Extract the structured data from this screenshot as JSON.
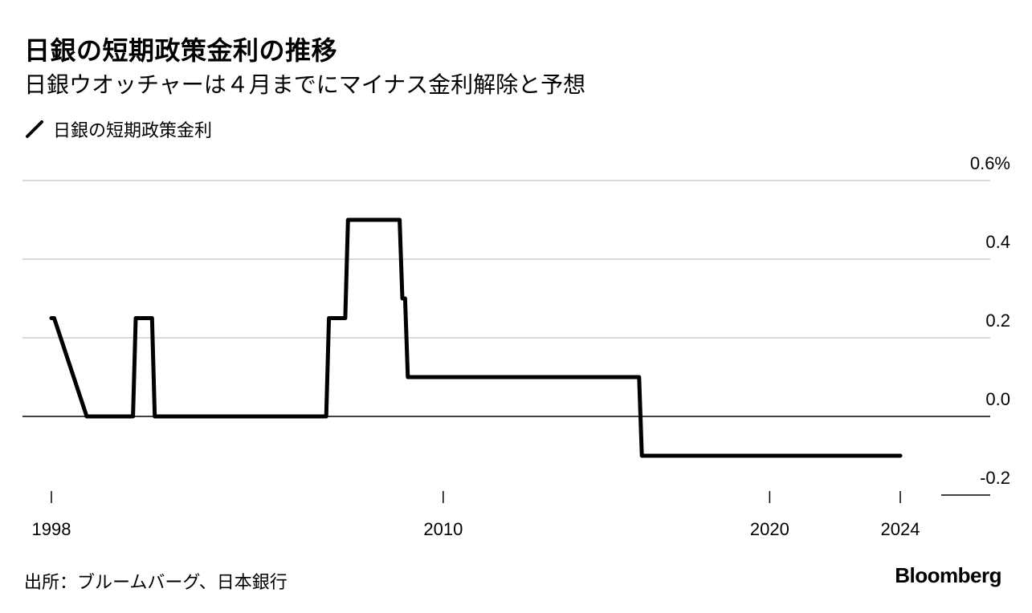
{
  "title": "日銀の短期政策金利の推移",
  "subtitle": "日銀ウオッチャーは４月までにマイナス金利解除と予想",
  "legend": {
    "icon": "line-swatch-icon",
    "label": "日銀の短期政策金利"
  },
  "source": "出所：ブルームバーグ、日本銀行",
  "brand": "Bloomberg",
  "colors": {
    "line": "#000000",
    "grid": "#d9d9d9",
    "zero_line": "#000000"
  },
  "chart_data": {
    "type": "line",
    "series": [
      {
        "name": "日銀の短期政策金利",
        "points": [
          [
            "1998-01",
            0.25
          ],
          [
            "1998-02",
            0.25
          ],
          [
            "1999-02",
            0.0
          ],
          [
            "2000-07",
            0.0
          ],
          [
            "2000-08",
            0.25
          ],
          [
            "2001-02",
            0.25
          ],
          [
            "2001-03",
            0.0
          ],
          [
            "2006-06",
            0.0
          ],
          [
            "2006-07",
            0.25
          ],
          [
            "2007-01",
            0.25
          ],
          [
            "2007-02",
            0.5
          ],
          [
            "2008-09",
            0.5
          ],
          [
            "2008-10",
            0.3
          ],
          [
            "2008-11",
            0.3
          ],
          [
            "2008-12",
            0.1
          ],
          [
            "2016-01",
            0.1
          ],
          [
            "2016-02",
            -0.1
          ],
          [
            "2024-01",
            -0.1
          ]
        ]
      }
    ],
    "xlim": [
      "1998-01",
      "2024-01"
    ],
    "ylim": [
      -0.2,
      0.6
    ],
    "x_ticks": [
      "1998",
      "2010",
      "2020",
      "2024"
    ],
    "y_ticks": [
      {
        "value": 0.6,
        "label": "0.6%"
      },
      {
        "value": 0.4,
        "label": "0.4"
      },
      {
        "value": 0.2,
        "label": "0.2"
      },
      {
        "value": 0.0,
        "label": "0.0"
      },
      {
        "value": -0.2,
        "label": "-0.2"
      }
    ],
    "grid": true,
    "y_axis_side": "right"
  }
}
